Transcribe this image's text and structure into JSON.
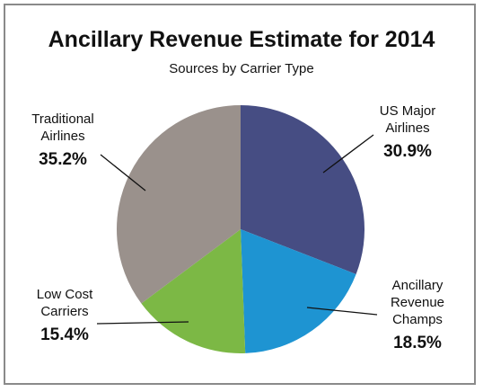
{
  "chart_data": {
    "type": "pie",
    "title": "Ancillary Revenue Estimate for 2014",
    "subtitle": "Sources by Carrier Type",
    "slices": [
      {
        "label_lines": [
          "US Major",
          "Airlines"
        ],
        "value_label": "30.9%",
        "value": 30.9,
        "color": "#464d83"
      },
      {
        "label_lines": [
          "Ancillary",
          "Revenue",
          "Champs"
        ],
        "value_label": "18.5%",
        "value": 18.5,
        "color": "#1e94d2"
      },
      {
        "label_lines": [
          "Low Cost",
          "Carriers"
        ],
        "value_label": "15.4%",
        "value": 15.4,
        "color": "#7cb845"
      },
      {
        "label_lines": [
          "Traditional",
          "Airlines"
        ],
        "value_label": "35.2%",
        "value": 35.2,
        "color": "#9a918c"
      }
    ]
  }
}
